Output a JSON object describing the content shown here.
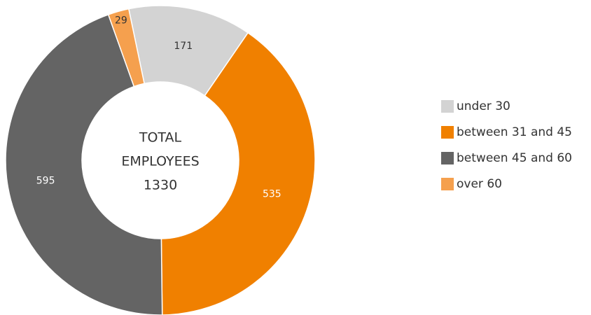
{
  "chart_data": {
    "type": "donut",
    "categories": [
      "under 30",
      "between 31 and 45",
      "between 45 and 60",
      "over 60"
    ],
    "values": [
      171,
      535,
      595,
      29
    ],
    "colors": [
      "#d3d3d3",
      "#f08000",
      "#646464",
      "#f5a04e"
    ],
    "label_colors": [
      "#333333",
      "#ffffff",
      "#ffffff",
      "#333333"
    ],
    "center_label": [
      "TOTAL",
      "EMPLOYEES"
    ],
    "total": 1330,
    "legend": "right"
  }
}
